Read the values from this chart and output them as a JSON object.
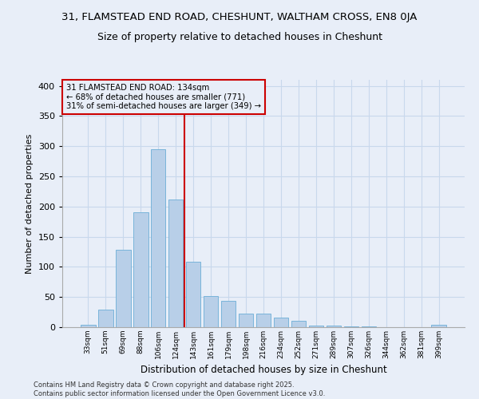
{
  "title1": "31, FLAMSTEAD END ROAD, CHESHUNT, WALTHAM CROSS, EN8 0JA",
  "title2": "Size of property relative to detached houses in Cheshunt",
  "xlabel": "Distribution of detached houses by size in Cheshunt",
  "ylabel": "Number of detached properties",
  "categories": [
    "33sqm",
    "51sqm",
    "69sqm",
    "88sqm",
    "106sqm",
    "124sqm",
    "143sqm",
    "161sqm",
    "179sqm",
    "198sqm",
    "216sqm",
    "234sqm",
    "252sqm",
    "271sqm",
    "289sqm",
    "307sqm",
    "326sqm",
    "344sqm",
    "362sqm",
    "381sqm",
    "399sqm"
  ],
  "values": [
    4,
    29,
    128,
    190,
    295,
    212,
    109,
    52,
    44,
    22,
    22,
    16,
    11,
    2,
    2,
    1,
    1,
    0,
    0,
    0,
    4
  ],
  "bar_color": "#b8cfe8",
  "bar_edgecolor": "#6baed6",
  "vline_x_index": 5,
  "vline_color": "#cc0000",
  "annotation_lines": [
    "31 FLAMSTEAD END ROAD: 134sqm",
    "← 68% of detached houses are smaller (771)",
    "31% of semi-detached houses are larger (349) →"
  ],
  "annotation_box_edgecolor": "#cc0000",
  "ylim": [
    0,
    410
  ],
  "yticks": [
    0,
    50,
    100,
    150,
    200,
    250,
    300,
    350,
    400
  ],
  "bg_color": "#e8eef8",
  "grid_color": "#c8d8ec",
  "footer": "Contains HM Land Registry data © Crown copyright and database right 2025.\nContains public sector information licensed under the Open Government Licence v3.0.",
  "title_fontsize": 9.5,
  "subtitle_fontsize": 9
}
